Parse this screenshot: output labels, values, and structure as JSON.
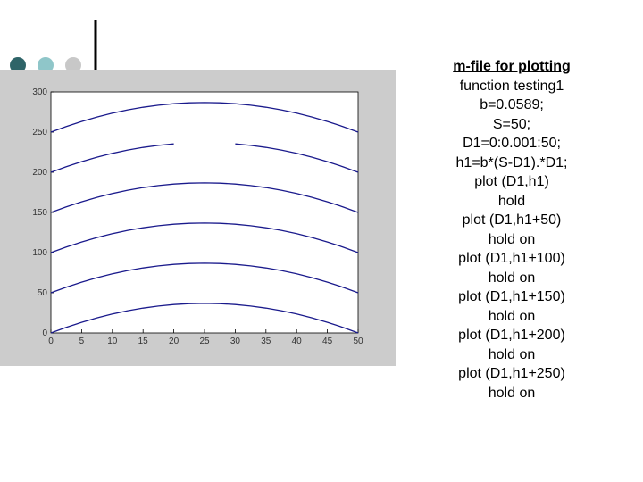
{
  "chart_data": {
    "type": "line",
    "x": [
      0,
      2.5,
      5,
      7.5,
      10,
      12.5,
      15,
      17.5,
      20,
      22.5,
      25,
      27.5,
      30,
      32.5,
      35,
      37.5,
      40,
      42.5,
      45,
      47.5,
      50
    ],
    "series": [
      {
        "color": "#1a1a8c",
        "values": [
          0,
          6.99,
          13.25,
          18.77,
          23.56,
          27.61,
          30.92,
          33.5,
          35.34,
          36.44,
          36.81,
          36.44,
          35.34,
          33.5,
          30.92,
          27.61,
          23.56,
          18.77,
          13.25,
          6.99,
          0
        ]
      },
      {
        "color": "#1a1a8c",
        "values": [
          50,
          56.99,
          63.25,
          68.77,
          73.56,
          77.61,
          80.92,
          83.5,
          85.34,
          86.44,
          86.81,
          86.44,
          85.34,
          83.5,
          80.92,
          77.61,
          73.56,
          68.77,
          63.25,
          56.99,
          50
        ]
      },
      {
        "color": "#1a1a8c",
        "values": [
          100,
          106.99,
          113.25,
          118.77,
          123.56,
          127.61,
          130.92,
          133.5,
          135.34,
          136.44,
          136.81,
          136.44,
          135.34,
          133.5,
          130.92,
          127.61,
          123.56,
          118.77,
          113.25,
          106.99,
          100
        ]
      },
      {
        "color": "#1a1a8c",
        "values": [
          150,
          156.99,
          163.25,
          168.77,
          173.56,
          177.61,
          180.92,
          183.5,
          185.34,
          186.44,
          186.81,
          186.44,
          185.34,
          183.5,
          180.92,
          177.61,
          173.56,
          168.77,
          163.25,
          156.99,
          150
        ]
      },
      {
        "color": "#1a1a8c",
        "values": [
          200,
          206.99,
          213.25,
          218.77,
          223.56,
          227.61,
          230.92,
          233.5,
          235.34,
          null,
          null,
          null,
          235.34,
          233.5,
          230.92,
          227.61,
          223.56,
          218.77,
          213.25,
          206.99,
          200
        ]
      },
      {
        "color": "#1a1a8c",
        "values": [
          250,
          256.99,
          263.25,
          268.77,
          273.56,
          277.61,
          280.92,
          283.5,
          285.34,
          286.44,
          286.81,
          286.44,
          285.34,
          283.5,
          280.92,
          277.61,
          273.56,
          268.77,
          263.25,
          256.99,
          250
        ]
      }
    ],
    "xlim": [
      0,
      50
    ],
    "xticks": [
      0,
      5,
      10,
      15,
      20,
      25,
      30,
      35,
      40,
      45,
      50
    ],
    "ylim": [
      0,
      300
    ],
    "yticks": [
      0,
      50,
      100,
      150,
      200,
      250,
      300
    ]
  },
  "slide": {
    "heading": "m-file for plotting",
    "code_lines": [
      "function testing1",
      "b=0.0589;",
      "S=50;",
      "D1=0:0.001:50;",
      "h1=b*(S-D1).*D1;",
      "plot (D1,h1)",
      "hold",
      "plot (D1,h1+50)",
      "hold on",
      "plot (D1,h1+100)",
      "hold on",
      "plot (D1,h1+150)",
      "hold on",
      "plot (D1,h1+200)",
      "hold on",
      "plot (D1,h1+250)",
      "hold on"
    ]
  }
}
